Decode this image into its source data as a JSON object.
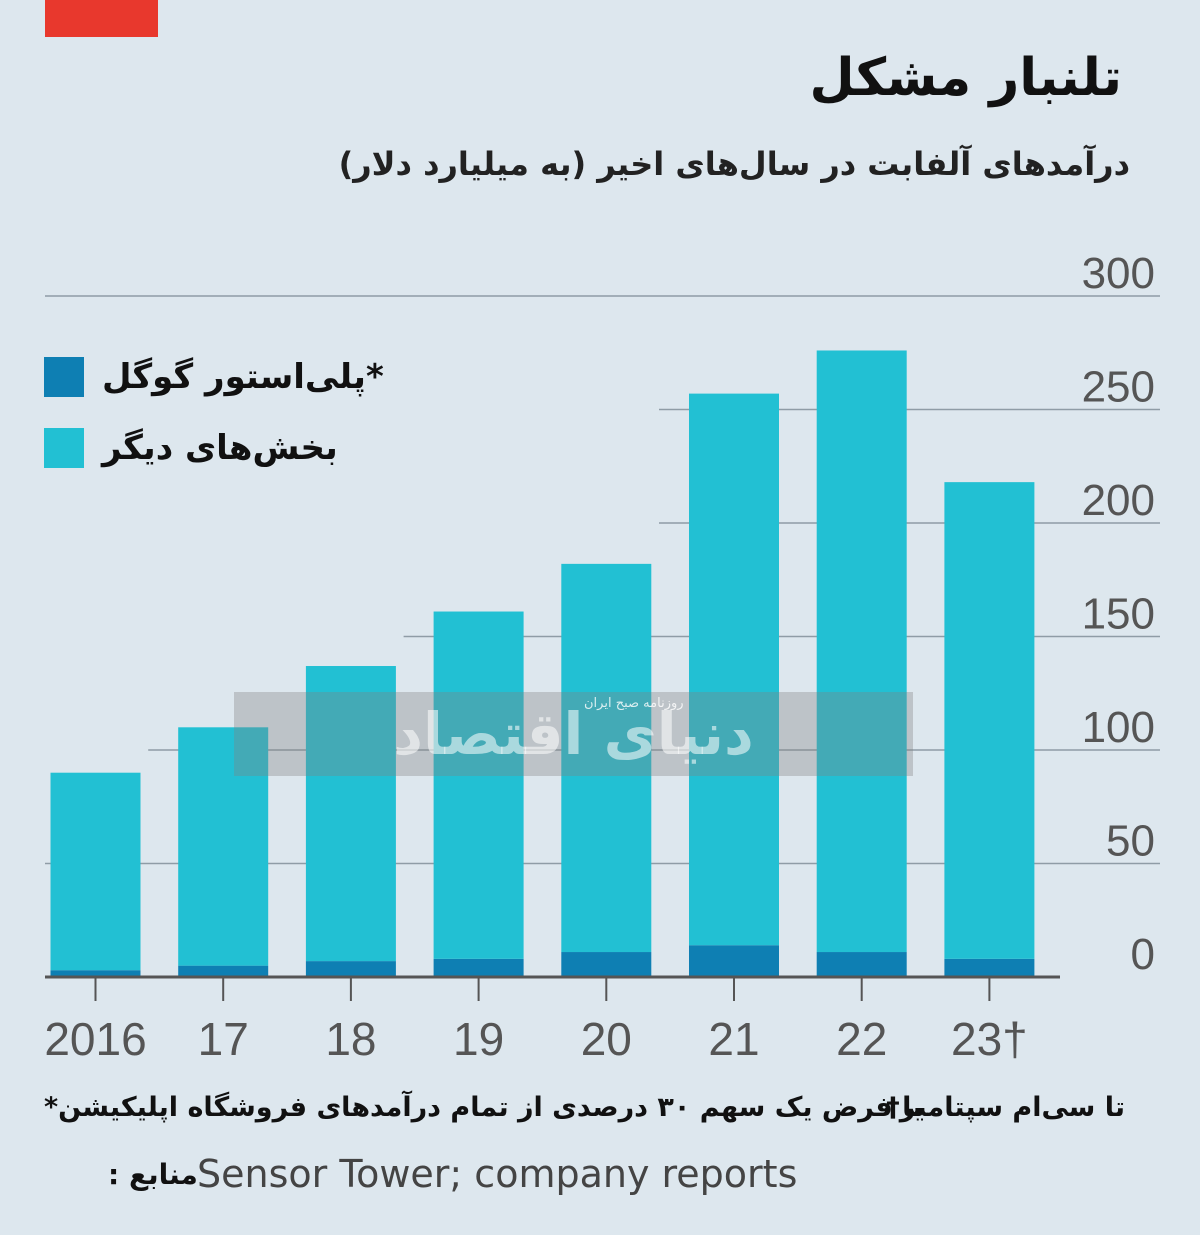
{
  "colors": {
    "background": "#dde7ee",
    "accent": "#e8382d",
    "play_store": "#0e7fb3",
    "other": "#22c0d3",
    "gridline": "#8f9ca6",
    "axis": "#555555",
    "tick_text": "#555555"
  },
  "header": {
    "title": "تلنبار مشکل",
    "subtitle": "درآمدهای آلفابت در سال‌های اخیر (به میلیارد دلار)"
  },
  "watermark": {
    "text": "دنیای اقتصاد",
    "subtext": "روزنامه صبح ایران"
  },
  "chart_data": {
    "type": "bar",
    "stacked": true,
    "title": "تلنبار مشکل",
    "subtitle": "درآمدهای آلفابت در سال‌های اخیر (به میلیارد دلار)",
    "categories": [
      "2016",
      "17",
      "18",
      "19",
      "20",
      "21",
      "22",
      "23†"
    ],
    "series": [
      {
        "name": "*پلی‌استور گوگل",
        "values": [
          3,
          5,
          7,
          8,
          11,
          14,
          11,
          8
        ]
      },
      {
        "name": "بخش‌های دیگر",
        "values": [
          87,
          105,
          130,
          153,
          171,
          243,
          265,
          210
        ]
      }
    ],
    "yticks": [
      0,
      50,
      100,
      150,
      200,
      250,
      300
    ],
    "ylim": [
      0,
      300
    ],
    "grid": true,
    "legend_position": "top-left",
    "y_axis_side": "right"
  },
  "notes": {
    "dagger": "تا سی‌ام سپتامبر†",
    "star": "با فرض یک سهم ۳۰ درصدی از تمام درآمدهای فروشگاه اپلیکیشن*"
  },
  "source": {
    "label": "منابع :",
    "text": "Sensor Tower; company reports"
  }
}
